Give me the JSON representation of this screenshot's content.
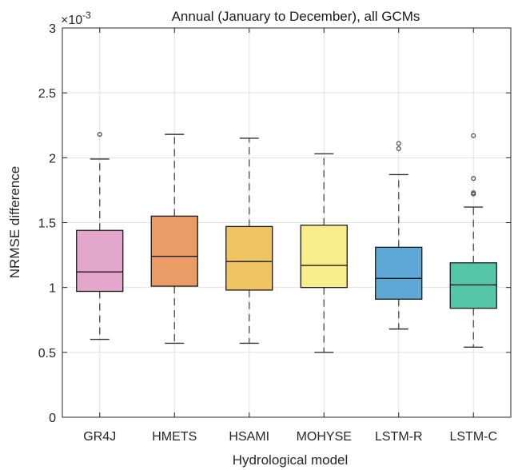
{
  "chart_data": {
    "type": "box",
    "title": "Annual (January to December), all GCMs",
    "xlabel": "Hydrological model",
    "ylabel": "NRMSE difference",
    "y_exponent_label": "×10",
    "y_exponent_power": "-3",
    "ylim": [
      0,
      3
    ],
    "yticks": [
      0,
      0.5,
      1,
      1.5,
      2,
      2.5,
      3
    ],
    "ytick_labels": [
      "0",
      "0.5",
      "1",
      "1.5",
      "2",
      "2.5",
      "3"
    ],
    "grid": true,
    "units_scale": 0.001,
    "categories": [
      "GR4J",
      "HMETS",
      "HSAMI",
      "MOHYSE",
      "LSTM-R",
      "LSTM-C"
    ],
    "boxes": [
      {
        "name": "GR4J",
        "whisker_low": 0.6,
        "q1": 0.97,
        "median": 1.12,
        "q3": 1.44,
        "whisker_high": 1.99,
        "outliers": [
          2.18
        ],
        "color": "#E3A7CC"
      },
      {
        "name": "HMETS",
        "whisker_low": 0.57,
        "q1": 1.01,
        "median": 1.24,
        "q3": 1.55,
        "whisker_high": 2.18,
        "outliers": [],
        "color": "#EB9C66"
      },
      {
        "name": "HSAMI",
        "whisker_low": 0.57,
        "q1": 0.98,
        "median": 1.2,
        "q3": 1.47,
        "whisker_high": 2.15,
        "outliers": [],
        "color": "#F0C463"
      },
      {
        "name": "MOHYSE",
        "whisker_low": 0.5,
        "q1": 1.0,
        "median": 1.17,
        "q3": 1.48,
        "whisker_high": 2.03,
        "outliers": [],
        "color": "#F8EC8B"
      },
      {
        "name": "LSTM-R",
        "whisker_low": 0.68,
        "q1": 0.91,
        "median": 1.07,
        "q3": 1.31,
        "whisker_high": 1.87,
        "outliers": [
          2.07,
          2.11
        ],
        "color": "#5EA8D6"
      },
      {
        "name": "LSTM-C",
        "whisker_low": 0.54,
        "q1": 0.84,
        "median": 1.02,
        "q3": 1.19,
        "whisker_high": 1.62,
        "outliers": [
          1.72,
          1.73,
          1.84,
          2.17
        ],
        "color": "#55C6A8"
      }
    ]
  }
}
